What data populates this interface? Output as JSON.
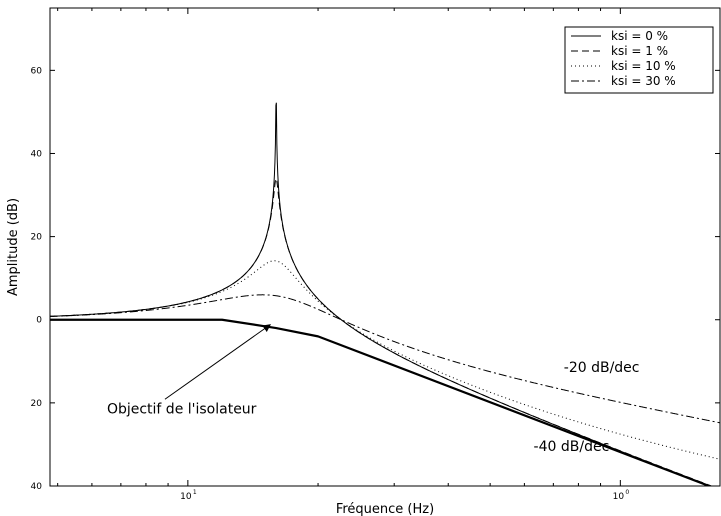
{
  "chart_data": {
    "type": "line",
    "title": "",
    "xlabel": "Fréquence (Hz)",
    "ylabel": "Amplitude (dB)",
    "x_scale": "log",
    "xlim": [
      4.8,
      170
    ],
    "ylim": [
      -40,
      75
    ],
    "grid": false,
    "legend_position": "top-right",
    "x_ticks": [
      {
        "value": 10,
        "label": "10",
        "exponent": "1"
      },
      {
        "value": 100,
        "label": "10",
        "exponent": "0"
      }
    ],
    "y_ticks": [
      {
        "value": -40,
        "label": "40"
      },
      {
        "value": -20,
        "label": "20"
      },
      {
        "value": 0,
        "label": "0"
      },
      {
        "value": 20,
        "label": "20"
      },
      {
        "value": 40,
        "label": "40"
      },
      {
        "value": 60,
        "label": "60"
      }
    ],
    "resonance_frequency_hz": 16,
    "series": [
      {
        "name": "ksi = 0 %",
        "style": "solid",
        "damping": 0.0
      },
      {
        "name": "ksi = 1 %",
        "style": "dashed",
        "damping": 0.01
      },
      {
        "name": "ksi = 10 %",
        "style": "dotted",
        "damping": 0.1
      },
      {
        "name": "ksi = 30 %",
        "style": "dashdot",
        "damping": 0.3
      }
    ],
    "target_curve": {
      "corner_hz": 18,
      "slope_db_per_decade": -40,
      "points": [
        {
          "x": 4.8,
          "y": 0
        },
        {
          "x": 12,
          "y": 0
        },
        {
          "x": 16,
          "y": -2
        },
        {
          "x": 20,
          "y": -4
        },
        {
          "x": 170,
          "y": -41
        }
      ]
    },
    "annotations": [
      {
        "text": "Objectif de l'isolateur",
        "x": 6.5,
        "y": -22.5,
        "arrow_to": {
          "x": 15.5,
          "y": -1.2
        }
      },
      {
        "text": "-20 dB/dec",
        "x": 74,
        "y": -12.6
      },
      {
        "text": "-40 dB/dec",
        "x": 63,
        "y": -31.6
      }
    ]
  }
}
